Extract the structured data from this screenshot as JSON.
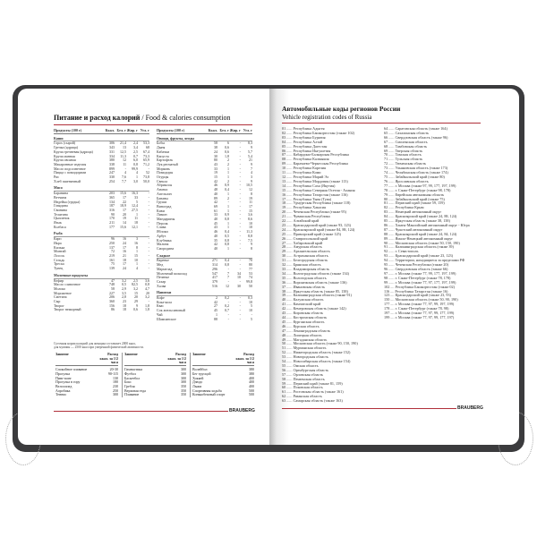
{
  "left_page": {
    "title": "Питание и расход калорий",
    "title_en": " / Food & calories consumption",
    "col_headers": [
      "Продукты (100 г)",
      "Ккал.",
      "Бел. г",
      "Жир. г",
      "Угл. г"
    ],
    "col1": [
      {
        "section": "Каши"
      },
      {
        "r": [
          "Горох (сырой)",
          "306",
          "21,4",
          "2,4",
          "53,3"
        ]
      },
      {
        "r": [
          "Гречка (ядрица)",
          "343",
          "13",
          "3,4",
          "68"
        ]
      },
      {
        "r": [
          "Крупа гречневая (ядрица)",
          "331",
          "12,5",
          "2,5",
          "67,4"
        ]
      },
      {
        "r": [
          "Крупа манная",
          "334",
          "11,3",
          "0,7",
          "73,3"
        ]
      },
      {
        "r": [
          "Крупа овсяная",
          "380",
          "12",
          "6,0",
          "65,9"
        ]
      },
      {
        "r": [
          "Макаронные изделия",
          "338",
          "11",
          "0,8",
          "71,2"
        ]
      },
      {
        "r": [
          "Масло подсолнечное",
          "899",
          "-",
          "99,9",
          "-"
        ]
      },
      {
        "r": [
          "Пицца с помидорами",
          "247",
          "4",
          "4",
          "52"
        ]
      },
      {
        "r": [
          "Рис",
          "330",
          "7,6",
          "1",
          "73,8"
        ]
      },
      {
        "r": [
          "Хлеб пшеничный",
          "254",
          "7,7",
          "3,0",
          "50,0"
        ]
      },
      {
        "section": "Мясо"
      },
      {
        "r": [
          "Баранина",
          "203",
          "15,6",
          "16,3",
          "-"
        ]
      },
      {
        "r": [
          "Ветчина",
          "365",
          "17",
          "33",
          "-"
        ]
      },
      {
        "r": [
          "Индейка (грудка)",
          "134",
          "22",
          "5",
          "-"
        ]
      },
      {
        "r": [
          "Говядина",
          "187",
          "18,9",
          "12,4",
          "-"
        ]
      },
      {
        "r": [
          "Свинина",
          "316",
          "17",
          "27,5",
          "-"
        ]
      },
      {
        "r": [
          "Телятина",
          "90",
          "20",
          "1",
          "-"
        ]
      },
      {
        "r": [
          "Цыпленок",
          "170",
          "19",
          "11",
          "-"
        ]
      },
      {
        "r": [
          "Язык",
          "211",
          "14",
          "18",
          "-"
        ]
      },
      {
        "r": [
          "Колбаса",
          "177",
          "15,6",
          "12,1",
          "-"
        ]
      },
      {
        "section": "Рыба"
      },
      {
        "r": [
          "Карп",
          "96",
          "16",
          "3",
          "-"
        ]
      },
      {
        "r": [
          "Икра",
          "250",
          "24",
          "16",
          "-"
        ]
      },
      {
        "r": [
          "Килька",
          "137",
          "17",
          "8",
          "-"
        ]
      },
      {
        "r": [
          "Минтай",
          "72",
          "16",
          "1",
          "-"
        ]
      },
      {
        "r": [
          "Лосось",
          "219",
          "21",
          "15",
          "-"
        ]
      },
      {
        "r": [
          "Сельдь",
          "161",
          "18",
          "10",
          "-"
        ]
      },
      {
        "r": [
          "Треска",
          "75",
          "17",
          "1",
          "-"
        ]
      },
      {
        "r": [
          "Тунец",
          "139",
          "24",
          "4",
          "-"
        ]
      },
      {
        "section": "Молочные продукты"
      },
      {
        "r": [
          "Кефир",
          "47",
          "3,2",
          "2,5",
          "3,6"
        ]
      },
      {
        "r": [
          "Масло сливочное",
          "748",
          "0,5",
          "82,5",
          "0,8"
        ]
      },
      {
        "r": [
          "Молоко",
          "58",
          "2,9",
          "3,2",
          "4,7"
        ]
      },
      {
        "r": [
          "Мороженое",
          "227",
          "3,5",
          "15",
          "20"
        ]
      },
      {
        "r": [
          "Сметана",
          "206",
          "2,8",
          "20",
          "3,2"
        ]
      },
      {
        "r": [
          "Сыр",
          "360",
          "23",
          "29",
          "-"
        ]
      },
      {
        "r": [
          "Творог",
          "156",
          "18",
          "9",
          "1,8"
        ]
      },
      {
        "r": [
          "Творог нежирный",
          "86",
          "18",
          "0,6",
          "1,8"
        ]
      }
    ],
    "col2": [
      {
        "section": "Овощи, фрукты, ягоды"
      },
      {
        "r": [
          "Бобы",
          "58",
          "6",
          "-",
          "8,3"
        ]
      },
      {
        "r": [
          "Дыня",
          "38",
          "0,6",
          "-",
          "9"
        ]
      },
      {
        "r": [
          "Кабачки",
          "24",
          "0,6",
          "-",
          "5,7"
        ]
      },
      {
        "r": [
          "Капуста",
          "30",
          "1,8",
          "-",
          "5,4"
        ]
      },
      {
        "r": [
          "Картофель",
          "80",
          "2",
          "-",
          "21"
        ]
      },
      {
        "r": [
          "Лук репчатый",
          "43",
          "2",
          "-",
          "9"
        ]
      },
      {
        "r": [
          "Морковь",
          "33",
          "1",
          "-",
          "7"
        ]
      },
      {
        "r": [
          "Помидоры",
          "19",
          "1",
          "-",
          "4"
        ]
      },
      {
        "r": [
          "Огурцы",
          "15",
          "1",
          "-",
          "3"
        ]
      },
      {
        "r": [
          "Свекла",
          "42",
          "2",
          "-",
          "9"
        ]
      },
      {
        "r": [
          "Абрикосы",
          "46",
          "0,9",
          "-",
          "10,5"
        ]
      },
      {
        "r": [
          "Ананас",
          "48",
          "0,4",
          "-",
          "12"
        ]
      },
      {
        "r": [
          "Апельсин",
          "40",
          "1",
          "-",
          "8"
        ]
      },
      {
        "r": [
          "Бананы",
          "89",
          "2",
          "-",
          "19"
        ]
      },
      {
        "r": [
          "Груши",
          "42",
          "-",
          "-",
          "11"
        ]
      },
      {
        "r": [
          "Виноград",
          "69",
          "1",
          "-",
          "17"
        ]
      },
      {
        "r": [
          "Киви",
          "61",
          "1",
          "-",
          "15"
        ]
      },
      {
        "r": [
          "Лимон",
          "33",
          "0,9",
          "-",
          "3,6"
        ]
      },
      {
        "r": [
          "Мандарины",
          "40",
          "0,8",
          "-",
          "8,6"
        ]
      },
      {
        "r": [
          "Персик",
          "45",
          "1",
          "-",
          "10"
        ]
      },
      {
        "r": [
          "Слива",
          "43",
          "1",
          "-",
          "10"
        ]
      },
      {
        "r": [
          "Яблоки",
          "46",
          "0,4",
          "-",
          "11,3"
        ]
      },
      {
        "r": [
          "Арбуз",
          "40",
          "0,5",
          "-",
          "8,8"
        ]
      },
      {
        "r": [
          "Клубника",
          "35",
          "0,8",
          "-",
          "7,5"
        ]
      },
      {
        "r": [
          "Малина",
          "42",
          "0,8",
          "-",
          "9"
        ]
      },
      {
        "r": [
          "Смородина",
          "40",
          "1",
          "-",
          "8"
        ]
      },
      {
        "section": "Сладкое"
      },
      {
        "r": [
          "Варенье",
          "271",
          "0,4",
          "-",
          "70"
        ]
      },
      {
        "r": [
          "Мед",
          "314",
          "0,8",
          "-",
          "80"
        ]
      },
      {
        "r": [
          "Мармелад",
          "296",
          "-",
          "-",
          "77"
        ]
      },
      {
        "r": [
          "Молочный шоколад",
          "547",
          "7",
          "34",
          "53"
        ]
      },
      {
        "r": [
          "Печенье",
          "417",
          "7",
          "10",
          "74"
        ]
      },
      {
        "r": [
          "Сахар",
          "379",
          "-",
          "-",
          "99,8"
        ]
      },
      {
        "r": [
          "Халва",
          "516",
          "12",
          "30",
          "50"
        ]
      },
      {
        "section": "Напитки"
      },
      {
        "r": [
          "Кофе",
          "2",
          "0,2",
          "-",
          "0,3"
        ]
      },
      {
        "r": [
          "Кока-кола",
          "42",
          "-",
          "-",
          "10"
        ]
      },
      {
        "r": [
          "Квас",
          "27",
          "0,2",
          "-",
          "5"
        ]
      },
      {
        "r": [
          "Сок апельсиновый",
          "45",
          "0,7",
          "-",
          "10"
        ]
      },
      {
        "r": [
          "Чай",
          "1",
          "-",
          "-",
          "-"
        ]
      },
      {
        "r": [
          "Шампанское",
          "88",
          "-",
          "-",
          "5"
        ]
      }
    ],
    "notes": [
      "Суточная норма калорий для женщин составляет 2000 ккал,",
      "для мужчин — 2500 ккал при умеренной физической активности."
    ],
    "activity_headers": [
      "Занятие",
      "Расход ккал. за 1/2 часа"
    ],
    "activities": [
      [
        [
          "Спокойное плавание",
          "20-30"
        ],
        [
          "Прогулка",
          "90-115"
        ],
        [
          "Пинг-понг",
          "130"
        ],
        [
          "Прогулка в гору",
          "180"
        ],
        [
          "Велосипед",
          "230"
        ],
        [
          "Аэробика",
          "250"
        ],
        [
          "Теннис",
          "300"
        ]
      ],
      [
        [
          "Гимнастика",
          "300"
        ],
        [
          "Футбол",
          "300"
        ],
        [
          "Баскетбол",
          "300"
        ],
        [
          "Бокс",
          "300"
        ],
        [
          "Гребля",
          "350"
        ],
        [
          "Верховая езда",
          "350"
        ],
        [
          "Плавание",
          "350"
        ]
      ],
      [
        [
          "Волейбол",
          "380"
        ],
        [
          "Бег трусцой",
          "380"
        ],
        [
          "Хоккей",
          "400"
        ],
        [
          "Дзюдо",
          "400"
        ],
        [
          "Лыжи",
          "400"
        ],
        [
          "Спортивная ходьба",
          "500"
        ],
        [
          "Конькобежный спорт",
          "500"
        ]
      ]
    ],
    "logo": "BRAUBERG"
  },
  "right_page": {
    "title": "Автомобильные коды регионов России",
    "subtitle": "Vehicle registration codes of Russia",
    "col1": [
      "01 ...... Республика Адыгея",
      "02 ...... Республика Башкортостан (также 102)",
      "03 ...... Республика Бурятия",
      "04 ...... Республика Алтай",
      "05 ...... Республика Дагестан",
      "06 ...... Республика Ингушетия",
      "07 ...... Кабардино-Балкарская Республика",
      "08 ...... Республика Калмыкия",
      "09 ...... Карачаево-Черкесская Республика",
      "10 ...... Республика Карелия",
      "11 ...... Республика Коми",
      "12 ...... Республика Марий Эл",
      "13 ...... Республика Мордовия (также 113)",
      "14 ...... Республика Саха (Якутия)",
      "15 ...... Республика Северная Осетия - Алания",
      "16 ...... Республика Татарстан (также 116)",
      "17 ...... Республика Тыва (Тува)",
      "18 ...... Удмуртская Республика (также 118)",
      "19 ...... Республика Хакасия",
      "20 ...... Чеченская Республика (также 95)",
      "21 ...... Чувашская Республика",
      "22 ...... Алтайский край",
      "23 ...... Краснодарский край (также 93, 123)",
      "24 ...... Красноярский край (также 84, 88, 124)",
      "25 ...... Приморский край (также 125)",
      "26 ...... Ставропольский край",
      "27 ...... Хабаровский край",
      "28 ...... Амурская область",
      "29 ...... Архангельская область",
      "30 ...... Астраханская область",
      "31 ...... Белгородская область",
      "32 ...... Брянская область",
      "33 ...... Владимирская область",
      "34 ...... Волгоградская область (также 134)",
      "35 ...... Вологодская область",
      "36 ...... Воронежская область (также 136)",
      "37 ...... Ивановская область",
      "38 ...... Иркутская область (также 85, 138)",
      "39 ...... Калининградская область (также 91)",
      "40 ...... Калужская область",
      "41 ...... Камчатский край",
      "42 ...... Кемеровская область (также 142)",
      "43 ...... Кировская область",
      "44 ...... Костромская область",
      "45 ...... Курганская область",
      "46 ...... Курская область",
      "47 ...... Ленинградская область",
      "48 ...... Липецкая область",
      "49 ...... Магаданская область",
      "50 ...... Московская область (также 90, 150, 190)",
      "51 ...... Мурманская область",
      "52 ...... Нижегородская область (также 152)",
      "53 ...... Новгородская область",
      "54 ...... Новосибирская область (также 154)",
      "55 ...... Омская область",
      "56 ...... Оренбургская область",
      "57 ...... Орловская область",
      "58 ...... Пензенская область",
      "59 ...... Пермский край (также 81, 159)",
      "60 ...... Псковская область",
      "61 ...... Ростовская область (также 161)",
      "62 ...... Рязанская область",
      "63 ...... Самарская область (также 163)"
    ],
    "col2": [
      "64 ...... Саратовская область (также 164)",
      "65 ...... Сахалинская область",
      "66 ...... Свердловская область (также 96)",
      "67 ...... Смоленская область",
      "68 ...... Тамбовская область",
      "69 ...... Тверская область",
      "70 ...... Томская область",
      "71 ...... Тульская область",
      "72 ...... Тюменская область",
      "73 ...... Ульяновская область (также 173)",
      "74 ...... Челябинская область (также 174)",
      "75 ...... Забайкальский край (также 80)",
      "76 ...... Ярославская область",
      "77 ...... г. Москва (также 97, 99, 177, 197, 199)",
      "78 ...... г. Санкт-Петербург (также 98, 178)",
      "79 ...... Еврейская автономная область",
      "80 ...... Забайкальский край (также 75)",
      "81 ...... Пермский край (также 59, 159)",
      "82 ...... Республика Крым",
      "83 ...... Ненецкий автономный округ",
      "84 ...... Красноярский край (также 24, 88, 124)",
      "85 ...... Иркутская область (также 38, 138)",
      "86 ...... Ханты-Мансийский автономный округ - Югра",
      "87 ...... Чукотский автономный округ",
      "88 ...... Красноярский край (также 24, 84, 124)",
      "89 ...... Ямало-Ненецкий автономный округ",
      "90 ...... Московская область (также 50, 150, 190)",
      "91 ...... Калининградская область (также 39)",
      "92 ...... г. Севастополь",
      "93 ...... Краснодарский край (также 23, 123)",
      "94 ...... Территории, находящиеся за пределами РФ",
      "95 ...... Чеченская Республика (также 20)",
      "96 ...... Свердловская область (также 66)",
      "97 ...... г. Москва (также 77, 99, 177, 197, 199)",
      "98 ...... г. Санкт-Петербург (также 78, 178)",
      "99 ...... г. Москва (также 77, 97, 177, 197, 199)",
      "102 .... Республика Башкортостан (также 02)",
      "116 .... Республика Татарстан (также 16)",
      "123 .... Краснодарский край (также 23, 93)",
      "150 .... Московская область (также 50, 90, 190)",
      "177 .... г. Москва (также 77, 97, 99, 197, 199)",
      "178 .... г. Санкт-Петербург (также 78, 98)",
      "197 .... г. Москва (также 77, 97, 99, 177, 199)",
      "199 .... г. Москва (также 77, 97, 99, 177, 197)"
    ],
    "logo": "BRAUBERG"
  },
  "colors": {
    "cover": "#3b3b3d",
    "accent_rule": "#b0303a"
  }
}
